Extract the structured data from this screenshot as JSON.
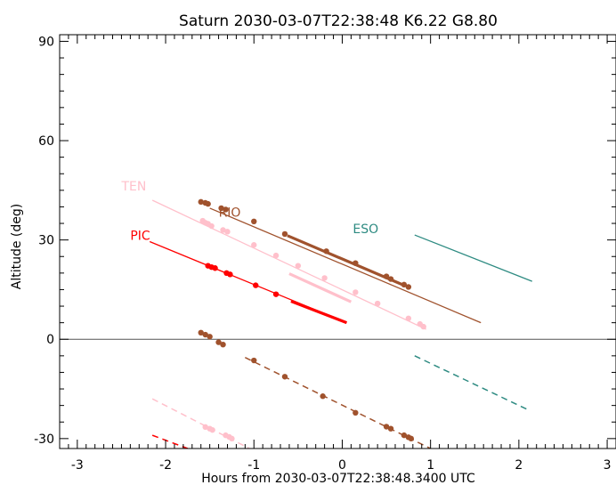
{
  "chart_data": {
    "type": "line",
    "title": "Saturn 2030-03-07T22:38:48  K6.22  G8.80",
    "xlabel": "Hours from 2030-03-07T22:38:48.3400 UTC",
    "ylabel": "Altitude (deg)",
    "xlim": [
      -3.2,
      3.1
    ],
    "ylim": [
      -33,
      92
    ],
    "xticks": [
      -3,
      -2,
      -1,
      0,
      1,
      2,
      3
    ],
    "xtick_labels": [
      "-3",
      "-2",
      "-1",
      "0",
      "1",
      "2",
      "3"
    ],
    "yticks": [
      -30,
      0,
      30,
      60,
      90
    ],
    "ytick_labels": [
      "-30",
      "0",
      "30",
      "60",
      "90"
    ],
    "grid": false,
    "zero_line": true,
    "series": [
      {
        "name": "TEN",
        "color": "#ffc0cb",
        "label_pos": [
          -2.5,
          45
        ],
        "solid": [
          [
            -2.15,
            42
          ],
          [
            0.95,
            3
          ]
        ],
        "dashed": [
          [
            -2.15,
            -18
          ],
          [
            -1.05,
            -33
          ]
        ],
        "thick": [
          [
            -0.6,
            19.8
          ],
          [
            0.1,
            11.3
          ]
        ],
        "dots": [
          [
            -1.58,
            35.8
          ],
          [
            -1.55,
            35.2
          ],
          [
            -1.52,
            34.9
          ],
          [
            -1.48,
            34.2
          ],
          [
            -1.35,
            33.0
          ],
          [
            -1.3,
            32.5
          ],
          [
            -1.0,
            28.5
          ],
          [
            -0.75,
            25.3
          ],
          [
            -0.5,
            22.2
          ],
          [
            -0.2,
            18.5
          ],
          [
            0.15,
            14.2
          ],
          [
            0.4,
            10.8
          ],
          [
            0.75,
            6.3
          ],
          [
            0.88,
            4.6
          ],
          [
            0.92,
            3.8
          ],
          [
            -1.55,
            -26.5
          ],
          [
            -1.5,
            -27.0
          ],
          [
            -1.47,
            -27.4
          ],
          [
            -1.32,
            -29.0
          ],
          [
            -1.28,
            -29.5
          ],
          [
            -1.25,
            -30.0
          ]
        ]
      },
      {
        "name": "RIO",
        "color": "#a0522d",
        "label_pos": [
          -1.4,
          37
        ],
        "solid": [
          [
            -1.5,
            39.6
          ],
          [
            1.57,
            5
          ]
        ],
        "dashed": [
          [
            -1.1,
            -5.5
          ],
          [
            1.0,
            -33
          ]
        ],
        "thick": [
          [
            -0.62,
            31.3
          ],
          [
            0.7,
            16.3
          ]
        ],
        "dots": [
          [
            -1.6,
            41.5
          ],
          [
            -1.55,
            41.2
          ],
          [
            -1.52,
            40.9
          ],
          [
            -1.37,
            39.6
          ],
          [
            -1.32,
            39.2
          ],
          [
            -1.0,
            35.6
          ],
          [
            -0.65,
            31.8
          ],
          [
            -0.18,
            26.6
          ],
          [
            0.15,
            23.0
          ],
          [
            0.5,
            19.0
          ],
          [
            0.55,
            18.2
          ],
          [
            0.7,
            16.5
          ],
          [
            0.75,
            15.8
          ],
          [
            -1.6,
            2.0
          ],
          [
            -1.55,
            1.4
          ],
          [
            -1.5,
            0.8
          ],
          [
            -1.4,
            -0.9
          ],
          [
            -1.35,
            -1.6
          ],
          [
            -1.0,
            -6.4
          ],
          [
            -0.65,
            -11.3
          ],
          [
            -0.22,
            -17.2
          ],
          [
            0.15,
            -22.2
          ],
          [
            0.5,
            -26.4
          ],
          [
            0.55,
            -27.0
          ],
          [
            0.7,
            -29.0
          ],
          [
            0.75,
            -29.6
          ],
          [
            0.78,
            -30.0
          ]
        ]
      },
      {
        "name": "PIC",
        "color": "#ff0000",
        "label_pos": [
          -2.4,
          30
        ],
        "solid": [
          [
            -2.18,
            29.5
          ],
          [
            0.05,
            5
          ]
        ],
        "dashed": [
          [
            -2.15,
            -29
          ],
          [
            -1.75,
            -33
          ]
        ],
        "thick": [
          [
            -0.58,
            11.5
          ],
          [
            0.05,
            5.0
          ]
        ],
        "dots": [
          [
            -1.52,
            22.2
          ],
          [
            -1.48,
            21.8
          ],
          [
            -1.44,
            21.5
          ],
          [
            -1.31,
            20.0
          ],
          [
            -1.27,
            19.6
          ],
          [
            -0.98,
            16.3
          ],
          [
            -0.75,
            13.6
          ]
        ]
      },
      {
        "name": "ESO",
        "color": "#2e8b82",
        "label_pos": [
          0.12,
          32
        ],
        "solid": [
          [
            0.82,
            31.5
          ],
          [
            2.15,
            17.5
          ]
        ],
        "dashed": [
          [
            0.82,
            -5
          ],
          [
            2.12,
            -21.5
          ]
        ],
        "thick": [],
        "dots": []
      }
    ]
  }
}
